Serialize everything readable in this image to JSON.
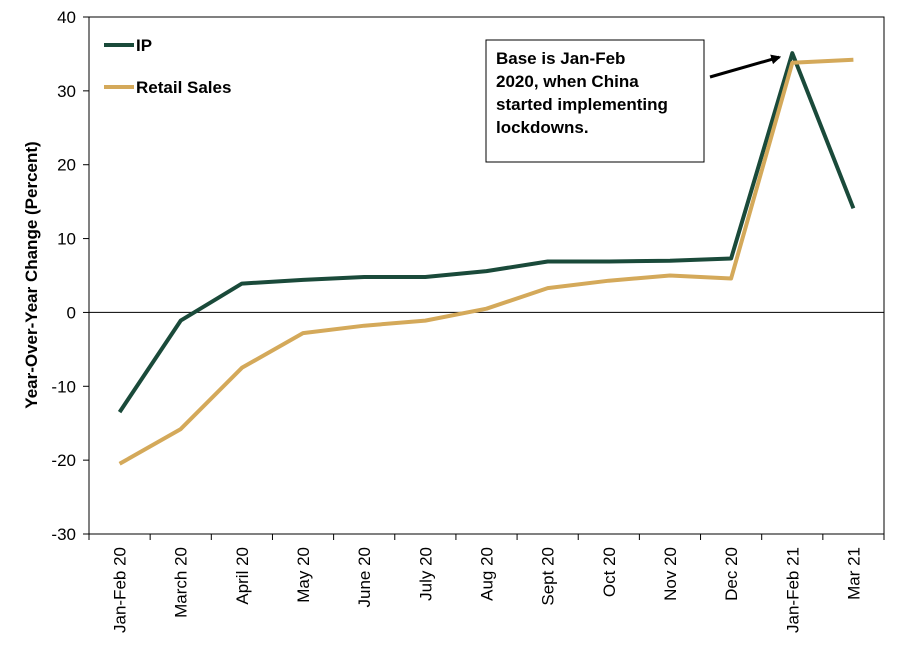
{
  "chart_data": {
    "type": "line",
    "categories": [
      "Jan-Feb 20",
      "March 20",
      "April 20",
      "May 20",
      "June 20",
      "July 20",
      "Aug 20",
      "Sept 20",
      "Oct 20",
      "Nov 20",
      "Dec 20",
      "Jan-Feb 21",
      "Mar 21"
    ],
    "series": [
      {
        "name": "IP",
        "color": "#1a4a3a",
        "values": [
          -13.5,
          -1.1,
          3.9,
          4.4,
          4.8,
          4.8,
          5.6,
          6.9,
          6.9,
          7.0,
          7.3,
          35.1,
          14.1
        ]
      },
      {
        "name": "Retail Sales",
        "color": "#d4a95a",
        "values": [
          -20.5,
          -15.8,
          -7.5,
          -2.8,
          -1.8,
          -1.1,
          0.5,
          3.3,
          4.3,
          5.0,
          4.6,
          33.8,
          34.2
        ]
      }
    ],
    "ylabel": "Year-Over-Year Change (Percent)",
    "ylim": [
      -30,
      40
    ],
    "yticks": [
      -30,
      -20,
      -10,
      0,
      10,
      20,
      30,
      40
    ],
    "ytick_labels": [
      "-30",
      "-20",
      "-10",
      "0",
      "10",
      "20",
      "30",
      "40"
    ],
    "legend_position": "top-left",
    "grid": false,
    "annotation": {
      "lines": [
        "Base is Jan-Feb",
        "2020, when China",
        "started implementing",
        "lockdowns."
      ],
      "points_to_category": "Jan-Feb 21",
      "points_to_value": 35.1
    }
  }
}
